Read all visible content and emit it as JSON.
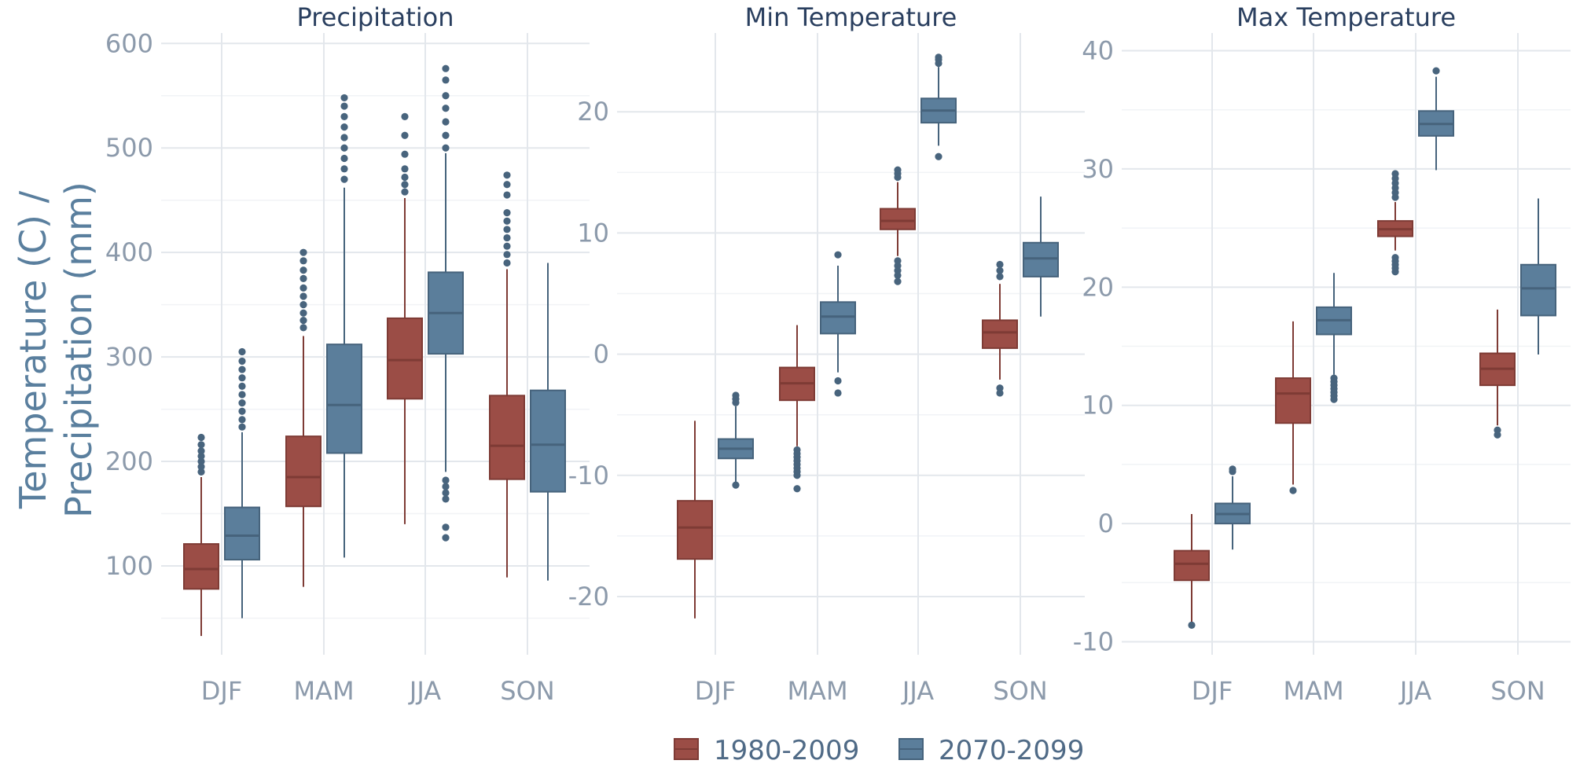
{
  "chart_data": {
    "type": "box",
    "ylabel_lines": [
      "Temperature (C) /",
      "Precipitation (mm)"
    ],
    "legend": {
      "placement": "bottom-center",
      "entries": [
        {
          "name": "1980-2009",
          "color": "#9b4d46"
        },
        {
          "name": "2070-2099",
          "color": "#5b7e9b"
        }
      ]
    },
    "categories": [
      "DJF",
      "MAM",
      "JJA",
      "SON"
    ],
    "series_colors": {
      "fill": [
        "#9b4d46",
        "#5b7e9b"
      ],
      "line": [
        "#7e3b35",
        "#46637c"
      ]
    },
    "outlier_color": "#48647d",
    "grid": true,
    "panels": [
      {
        "title": "Precipitation",
        "ylim": [
          15,
          610
        ],
        "ticks": [
          100,
          200,
          300,
          400,
          500,
          600
        ],
        "tick_labels": [
          "100",
          "200",
          "300",
          "400",
          "500",
          "600"
        ],
        "boxes": [
          {
            "category": "DJF",
            "series": "1980-2009",
            "low": 33,
            "q1": 78,
            "median": 97,
            "q3": 121,
            "high": 185,
            "outliers": [
              190,
              195,
              200,
              205,
              210,
              216,
              223
            ]
          },
          {
            "category": "DJF",
            "series": "2070-2099",
            "low": 50,
            "q1": 106,
            "median": 129,
            "q3": 156,
            "high": 228,
            "outliers": [
              233,
              240,
              248,
              256,
              264,
              272,
              280,
              288,
              296,
              305
            ]
          },
          {
            "category": "MAM",
            "series": "1980-2009",
            "low": 80,
            "q1": 157,
            "median": 185,
            "q3": 224,
            "high": 320,
            "outliers": [
              328,
              335,
              342,
              350,
              358,
              366,
              375,
              383,
              392,
              400
            ]
          },
          {
            "category": "MAM",
            "series": "2070-2099",
            "low": 108,
            "q1": 208,
            "median": 254,
            "q3": 312,
            "high": 462,
            "outliers": [
              470,
              480,
              490,
              500,
              510,
              520,
              530,
              540,
              548
            ]
          },
          {
            "category": "JJA",
            "series": "1980-2009",
            "low": 140,
            "q1": 260,
            "median": 297,
            "q3": 337,
            "high": 452,
            "outliers": [
              458,
              465,
              472,
              480,
              494,
              512,
              530
            ]
          },
          {
            "category": "JJA",
            "series": "2070-2099",
            "low": 190,
            "q1": 303,
            "median": 342,
            "q3": 381,
            "high": 495,
            "outliers": [
              127,
              137,
              164,
              170,
              176,
              182,
              500,
              512,
              525,
              538,
              550,
              565,
              576
            ]
          },
          {
            "category": "SON",
            "series": "1980-2009",
            "low": 89,
            "q1": 183,
            "median": 215,
            "q3": 263,
            "high": 384,
            "outliers": [
              390,
              398,
              406,
              414,
              422,
              430,
              438,
              455,
              465,
              474
            ]
          },
          {
            "category": "SON",
            "series": "2070-2099",
            "low": 86,
            "q1": 171,
            "median": 216,
            "q3": 268,
            "high": 390,
            "outliers": []
          }
        ]
      },
      {
        "title": "Min Temperature",
        "ylim": [
          -24.8,
          26.5
        ],
        "ticks": [
          -20,
          -10,
          0,
          10,
          20
        ],
        "tick_labels": [
          "-20",
          "-10",
          "0",
          "10",
          "20"
        ],
        "boxes": [
          {
            "category": "DJF",
            "series": "1980-2009",
            "low": -21.8,
            "q1": -16.9,
            "median": -14.3,
            "q3": -12.1,
            "high": -5.5,
            "outliers": []
          },
          {
            "category": "DJF",
            "series": "2070-2099",
            "low": -10.9,
            "q1": -8.6,
            "median": -7.8,
            "q3": -7.0,
            "high": -4.3,
            "outliers": [
              -3.4,
              -3.7,
              -4.0,
              -10.8
            ]
          },
          {
            "category": "MAM",
            "series": "1980-2009",
            "low": -7.6,
            "q1": -3.8,
            "median": -2.4,
            "q3": -1.1,
            "high": 2.4,
            "outliers": [
              -7.9,
              -8.2,
              -8.5,
              -8.8,
              -9.1,
              -9.4,
              -9.7,
              -10.0,
              -11.1
            ]
          },
          {
            "category": "MAM",
            "series": "2070-2099",
            "low": -1.5,
            "q1": 1.7,
            "median": 3.1,
            "q3": 4.3,
            "high": 7.3,
            "outliers": [
              8.2,
              -2.2,
              -3.2
            ]
          },
          {
            "category": "JJA",
            "series": "1980-2009",
            "low": 8.1,
            "q1": 10.3,
            "median": 11.0,
            "q3": 12.0,
            "high": 14.2,
            "outliers": [
              14.6,
              14.9,
              15.2,
              7.7,
              7.3,
              6.9,
              6.5,
              6.0
            ]
          },
          {
            "category": "JJA",
            "series": "2070-2099",
            "low": 17.2,
            "q1": 19.1,
            "median": 20.1,
            "q3": 21.1,
            "high": 23.7,
            "outliers": [
              24.0,
              24.3,
              24.5,
              16.3
            ]
          },
          {
            "category": "SON",
            "series": "1980-2009",
            "low": -2.1,
            "q1": 0.5,
            "median": 1.8,
            "q3": 2.8,
            "high": 5.8,
            "outliers": [
              6.4,
              6.9,
              7.4,
              -2.8,
              -3.2
            ]
          },
          {
            "category": "SON",
            "series": "2070-2099",
            "low": 3.1,
            "q1": 6.4,
            "median": 7.9,
            "q3": 9.2,
            "high": 13.0,
            "outliers": []
          }
        ]
      },
      {
        "title": "Max Temperature",
        "ylim": [
          -11.1,
          41.5
        ],
        "ticks": [
          -10,
          0,
          10,
          20,
          30,
          40
        ],
        "tick_labels": [
          "-10",
          "0",
          "10",
          "20",
          "30",
          "40"
        ],
        "boxes": [
          {
            "category": "DJF",
            "series": "1980-2009",
            "low": -8.7,
            "q1": -4.8,
            "median": -3.4,
            "q3": -2.3,
            "high": 0.8,
            "outliers": [
              -8.6
            ]
          },
          {
            "category": "DJF",
            "series": "2070-2099",
            "low": -2.2,
            "q1": 0.0,
            "median": 0.8,
            "q3": 1.7,
            "high": 4.0,
            "outliers": [
              4.4,
              4.6
            ]
          },
          {
            "category": "MAM",
            "series": "1980-2009",
            "low": 3.3,
            "q1": 8.5,
            "median": 11.0,
            "q3": 12.3,
            "high": 17.1,
            "outliers": [
              2.8
            ]
          },
          {
            "category": "MAM",
            "series": "2070-2099",
            "low": 12.6,
            "q1": 16.0,
            "median": 17.2,
            "q3": 18.3,
            "high": 21.2,
            "outliers": [
              10.5,
              10.8,
              11.1,
              11.4,
              11.7,
              12.0,
              12.3
            ]
          },
          {
            "category": "JJA",
            "series": "1980-2009",
            "low": 23.1,
            "q1": 24.3,
            "median": 24.9,
            "q3": 25.6,
            "high": 27.2,
            "outliers": [
              27.6,
              28.0,
              28.4,
              28.8,
              29.2,
              29.6,
              21.3,
              21.6,
              21.9,
              22.2,
              22.5
            ]
          },
          {
            "category": "JJA",
            "series": "2070-2099",
            "low": 29.9,
            "q1": 32.8,
            "median": 33.8,
            "q3": 34.9,
            "high": 37.8,
            "outliers": [
              38.3
            ]
          },
          {
            "category": "SON",
            "series": "1980-2009",
            "low": 8.3,
            "q1": 11.7,
            "median": 13.1,
            "q3": 14.4,
            "high": 18.1,
            "outliers": [
              7.9,
              7.5
            ]
          },
          {
            "category": "SON",
            "series": "2070-2099",
            "low": 14.3,
            "q1": 17.6,
            "median": 19.9,
            "q3": 21.9,
            "high": 27.5,
            "outliers": []
          }
        ]
      }
    ]
  }
}
